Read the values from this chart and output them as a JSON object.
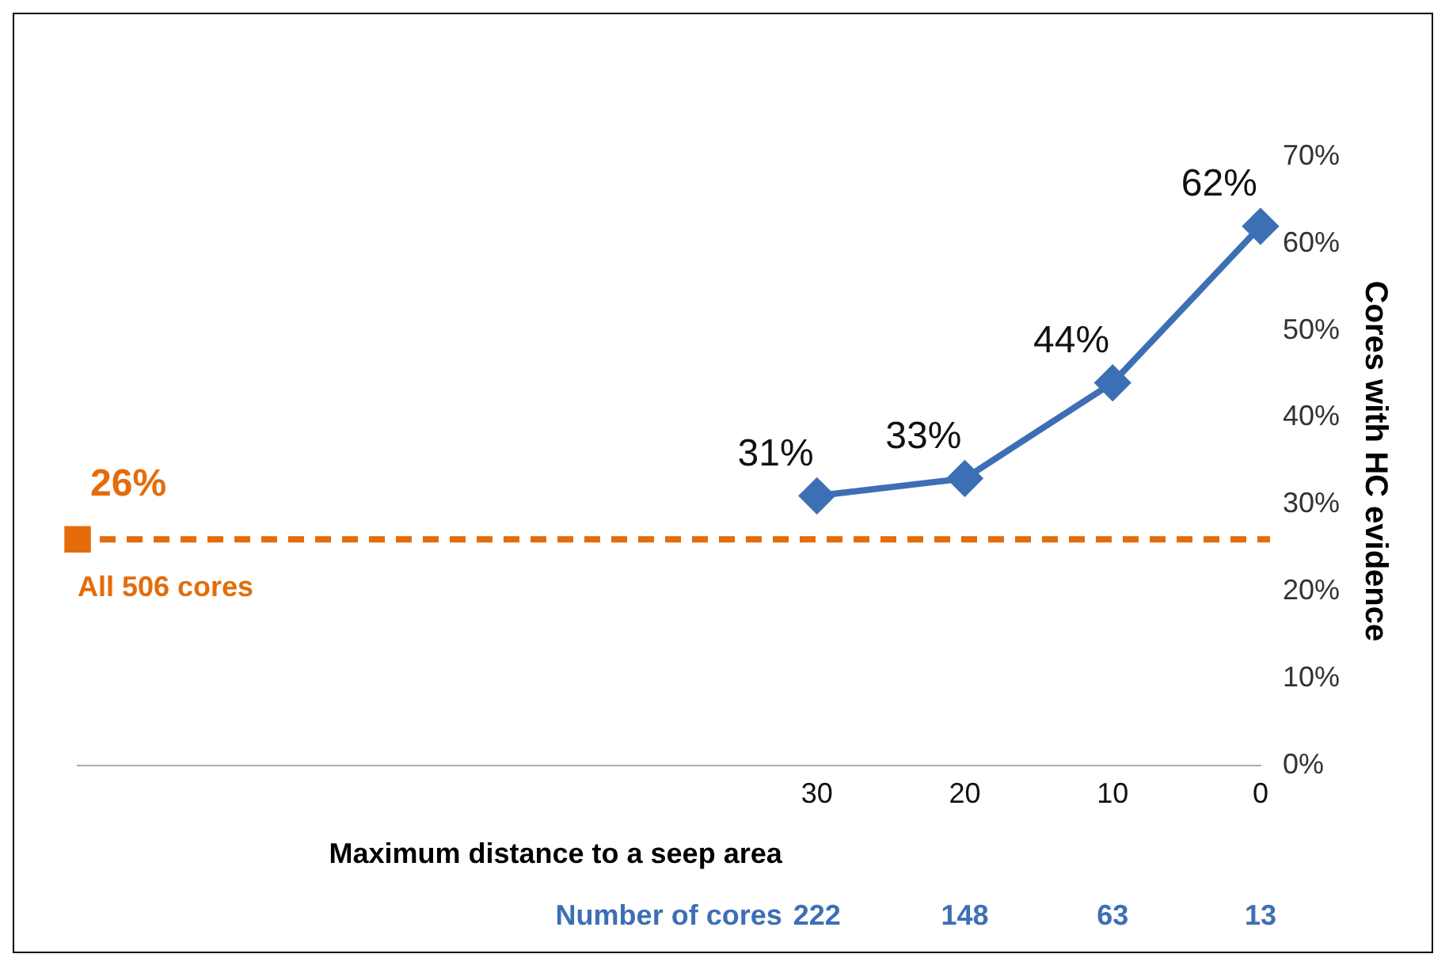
{
  "chart_data": {
    "type": "line",
    "xlabel": "Maximum distance to a seep area",
    "ylabel": "Cores with HC evidence",
    "categories": [
      null,
      null,
      null,
      null,
      null,
      "30",
      "20",
      "10",
      "0"
    ],
    "series": [
      {
        "type": "line",
        "color": "#3d6fb4",
        "marker": "diamond",
        "values": [
          null,
          null,
          null,
          null,
          null,
          31,
          33,
          44,
          62
        ],
        "value_labels": [
          null,
          null,
          null,
          null,
          null,
          "31%",
          "33%",
          "44%",
          "62%"
        ]
      },
      {
        "type": "scatter",
        "color": "#e46c0a",
        "marker": "square",
        "values": [
          26,
          null,
          null,
          null,
          null,
          null,
          null,
          null,
          null
        ],
        "value_labels": [
          "26%",
          null,
          null,
          null,
          null,
          null,
          null,
          null,
          null
        ]
      }
    ],
    "ref_lines": [
      {
        "axis": "y",
        "value": 26,
        "label": "All 506 cores",
        "color": "#e46c0a",
        "line_style": "dashed"
      }
    ],
    "annotations": [
      "Number of cores",
      "222",
      "148",
      "63",
      "13"
    ],
    "ylim": [
      0,
      70
    ],
    "yticks": [
      {
        "value": 0,
        "label": "0%"
      },
      {
        "value": 10,
        "label": "10%"
      },
      {
        "value": 20,
        "label": "20%"
      },
      {
        "value": 30,
        "label": "30%"
      },
      {
        "value": 40,
        "label": "40%"
      },
      {
        "value": 50,
        "label": "50%"
      },
      {
        "value": 60,
        "label": "60%"
      },
      {
        "value": 70,
        "label": "70%"
      }
    ],
    "grid": false,
    "legend": false
  }
}
